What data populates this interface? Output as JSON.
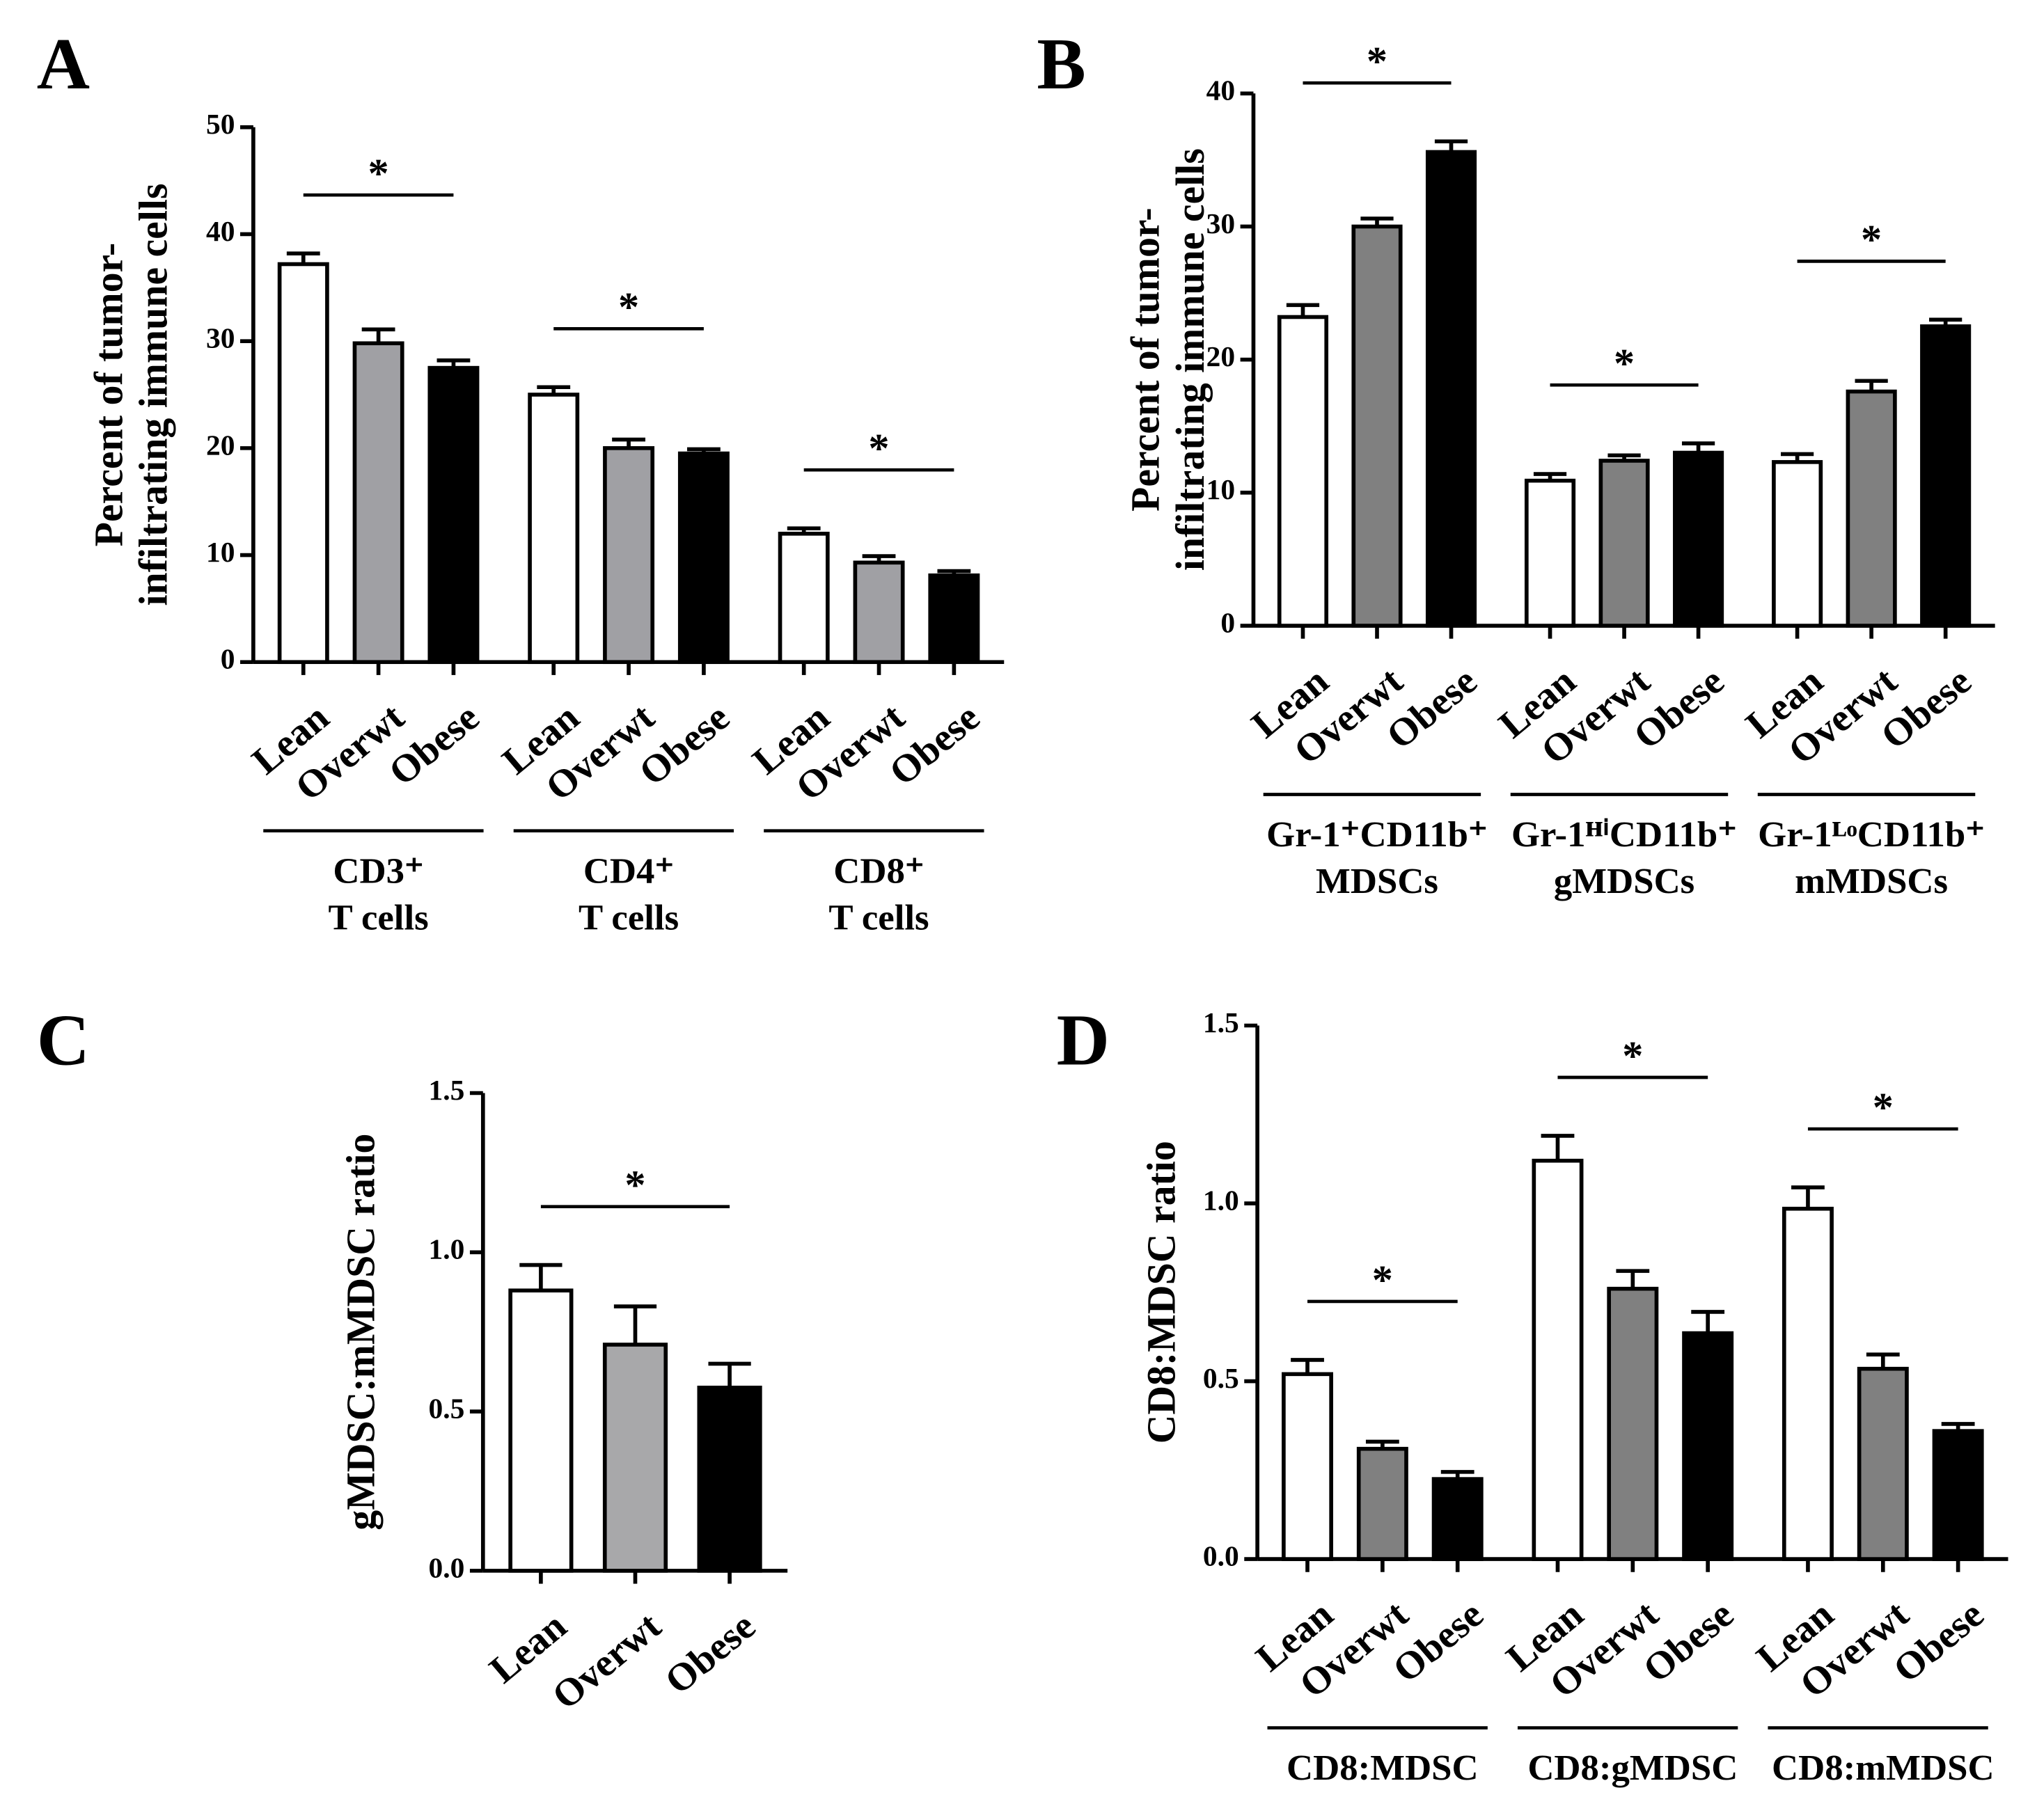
{
  "chart_data": [
    {
      "type": "bar",
      "panel": "A",
      "ylabel": [
        "Percent of tumor-",
        "infiltrating immune cells"
      ],
      "categories": [
        [
          "CD3⁺",
          "T cells"
        ],
        [
          "CD4⁺",
          "T cells"
        ],
        [
          "CD8⁺",
          "T cells"
        ]
      ],
      "series": [
        {
          "name": "Lean",
          "color": "#ffffff",
          "values": [
            37.2,
            25,
            12
          ],
          "errors": [
            1,
            0.7,
            0.5
          ]
        },
        {
          "name": "Overwt",
          "color": "#a0a0a4",
          "values": [
            29.8,
            20,
            9.3
          ],
          "errors": [
            1.3,
            0.8,
            0.6
          ]
        },
        {
          "name": "Obese",
          "color": "#000000",
          "values": [
            27.5,
            19.5,
            8.1
          ],
          "errors": [
            0.7,
            0.4,
            0.4
          ]
        }
      ],
      "significance": [
        "*",
        "*",
        "*"
      ],
      "ylim": [
        0,
        50
      ],
      "yticks": [
        0,
        10,
        20,
        30,
        40,
        50
      ]
    },
    {
      "type": "bar",
      "panel": "B",
      "ylabel": [
        "Percent of tumor-",
        "infiltrating immune cells"
      ],
      "categories": [
        [
          "Gr-1⁺CD11b⁺",
          "MDSCs"
        ],
        [
          "Gr-1ᴴⁱCD11b⁺",
          "gMDSCs"
        ],
        [
          "Gr-1ᴸᵒCD11b⁺",
          "mMDSCs"
        ]
      ],
      "series": [
        {
          "name": "Lean",
          "color": "#ffffff",
          "values": [
            23.2,
            10.9,
            12.3
          ],
          "errors": [
            0.9,
            0.5,
            0.6
          ]
        },
        {
          "name": "Overwt",
          "color": "#808080",
          "values": [
            30,
            12.4,
            17.6
          ],
          "errors": [
            0.6,
            0.4,
            0.8
          ]
        },
        {
          "name": "Obese",
          "color": "#000000",
          "values": [
            35.6,
            13,
            22.5
          ],
          "errors": [
            0.8,
            0.7,
            0.5
          ]
        }
      ],
      "significance": [
        "*",
        "*",
        "*"
      ],
      "ylim": [
        0,
        40
      ],
      "yticks": [
        0,
        10,
        20,
        30,
        40
      ]
    },
    {
      "type": "bar",
      "panel": "C",
      "ylabel": [
        "gMDSC:mMDSC ratio"
      ],
      "categories": [
        []
      ],
      "series": [
        {
          "name": "Lean",
          "color": "#ffffff",
          "values": [
            0.88
          ],
          "errors": [
            0.08
          ]
        },
        {
          "name": "Overwt",
          "color": "#a8a8aa",
          "values": [
            0.71
          ],
          "errors": [
            0.12
          ]
        },
        {
          "name": "Obese",
          "color": "#000000",
          "values": [
            0.575
          ],
          "errors": [
            0.075
          ]
        }
      ],
      "significance": [
        "*"
      ],
      "ylim": [
        0,
        1.5
      ],
      "yticks": [
        {
          "value": 0,
          "label": "0.0"
        },
        0.5,
        {
          "value": 1,
          "label": "1.0"
        },
        1.5
      ]
    },
    {
      "type": "bar",
      "panel": "D",
      "ylabel": [
        "CD8:MDSC ratio"
      ],
      "categories": [
        [
          "CD8:MDSC"
        ],
        [
          "CD8:gMDSC"
        ],
        [
          "CD8:mMDSC"
        ]
      ],
      "series": [
        {
          "name": "Lean",
          "color": "#ffffff",
          "values": [
            0.52,
            1.12,
            0.985
          ],
          "errors": [
            0.04,
            0.07,
            0.06
          ]
        },
        {
          "name": "Overwt",
          "color": "#808080",
          "values": [
            0.31,
            0.76,
            0.535
          ],
          "errors": [
            0.02,
            0.05,
            0.04
          ]
        },
        {
          "name": "Obese",
          "color": "#000000",
          "values": [
            0.225,
            0.635,
            0.36
          ],
          "errors": [
            0.02,
            0.06,
            0.02
          ]
        }
      ],
      "significance": [
        "*",
        "*",
        "*"
      ],
      "ylim": [
        0,
        1.5
      ],
      "yticks": [
        {
          "value": 0,
          "label": "0.0"
        },
        0.5,
        {
          "value": 1,
          "label": "1.0"
        },
        1.5
      ]
    }
  ]
}
